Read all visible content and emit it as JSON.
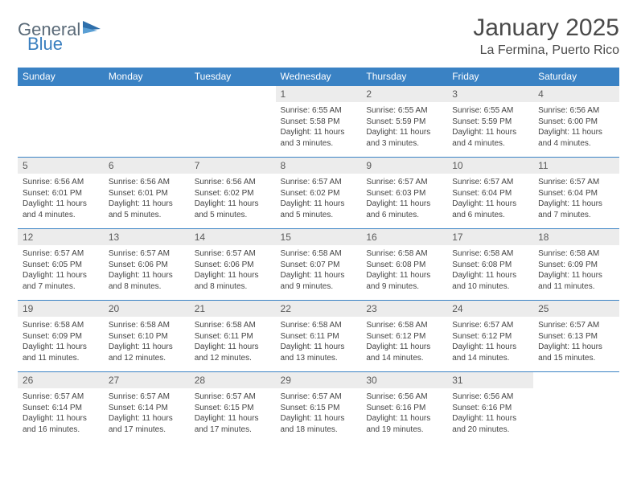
{
  "brand": {
    "name_part1": "General",
    "name_part2": "Blue",
    "text_color": "#5a6a78",
    "accent_color": "#3a7fbf"
  },
  "header": {
    "month_title": "January 2025",
    "location": "La Fermina, Puerto Rico"
  },
  "theme": {
    "header_bg": "#3a82c4",
    "header_text": "#ffffff",
    "daynum_bg": "#ececec",
    "daynum_text": "#5a5a5a",
    "body_text": "#444444",
    "rule_color": "#3a82c4"
  },
  "days_of_week": [
    "Sunday",
    "Monday",
    "Tuesday",
    "Wednesday",
    "Thursday",
    "Friday",
    "Saturday"
  ],
  "weeks": [
    [
      {
        "day": "",
        "lines": [
          "",
          "",
          "",
          ""
        ]
      },
      {
        "day": "",
        "lines": [
          "",
          "",
          "",
          ""
        ]
      },
      {
        "day": "",
        "lines": [
          "",
          "",
          "",
          ""
        ]
      },
      {
        "day": "1",
        "lines": [
          "Sunrise: 6:55 AM",
          "Sunset: 5:58 PM",
          "Daylight: 11 hours",
          "and 3 minutes."
        ]
      },
      {
        "day": "2",
        "lines": [
          "Sunrise: 6:55 AM",
          "Sunset: 5:59 PM",
          "Daylight: 11 hours",
          "and 3 minutes."
        ]
      },
      {
        "day": "3",
        "lines": [
          "Sunrise: 6:55 AM",
          "Sunset: 5:59 PM",
          "Daylight: 11 hours",
          "and 4 minutes."
        ]
      },
      {
        "day": "4",
        "lines": [
          "Sunrise: 6:56 AM",
          "Sunset: 6:00 PM",
          "Daylight: 11 hours",
          "and 4 minutes."
        ]
      }
    ],
    [
      {
        "day": "5",
        "lines": [
          "Sunrise: 6:56 AM",
          "Sunset: 6:01 PM",
          "Daylight: 11 hours",
          "and 4 minutes."
        ]
      },
      {
        "day": "6",
        "lines": [
          "Sunrise: 6:56 AM",
          "Sunset: 6:01 PM",
          "Daylight: 11 hours",
          "and 5 minutes."
        ]
      },
      {
        "day": "7",
        "lines": [
          "Sunrise: 6:56 AM",
          "Sunset: 6:02 PM",
          "Daylight: 11 hours",
          "and 5 minutes."
        ]
      },
      {
        "day": "8",
        "lines": [
          "Sunrise: 6:57 AM",
          "Sunset: 6:02 PM",
          "Daylight: 11 hours",
          "and 5 minutes."
        ]
      },
      {
        "day": "9",
        "lines": [
          "Sunrise: 6:57 AM",
          "Sunset: 6:03 PM",
          "Daylight: 11 hours",
          "and 6 minutes."
        ]
      },
      {
        "day": "10",
        "lines": [
          "Sunrise: 6:57 AM",
          "Sunset: 6:04 PM",
          "Daylight: 11 hours",
          "and 6 minutes."
        ]
      },
      {
        "day": "11",
        "lines": [
          "Sunrise: 6:57 AM",
          "Sunset: 6:04 PM",
          "Daylight: 11 hours",
          "and 7 minutes."
        ]
      }
    ],
    [
      {
        "day": "12",
        "lines": [
          "Sunrise: 6:57 AM",
          "Sunset: 6:05 PM",
          "Daylight: 11 hours",
          "and 7 minutes."
        ]
      },
      {
        "day": "13",
        "lines": [
          "Sunrise: 6:57 AM",
          "Sunset: 6:06 PM",
          "Daylight: 11 hours",
          "and 8 minutes."
        ]
      },
      {
        "day": "14",
        "lines": [
          "Sunrise: 6:57 AM",
          "Sunset: 6:06 PM",
          "Daylight: 11 hours",
          "and 8 minutes."
        ]
      },
      {
        "day": "15",
        "lines": [
          "Sunrise: 6:58 AM",
          "Sunset: 6:07 PM",
          "Daylight: 11 hours",
          "and 9 minutes."
        ]
      },
      {
        "day": "16",
        "lines": [
          "Sunrise: 6:58 AM",
          "Sunset: 6:08 PM",
          "Daylight: 11 hours",
          "and 9 minutes."
        ]
      },
      {
        "day": "17",
        "lines": [
          "Sunrise: 6:58 AM",
          "Sunset: 6:08 PM",
          "Daylight: 11 hours",
          "and 10 minutes."
        ]
      },
      {
        "day": "18",
        "lines": [
          "Sunrise: 6:58 AM",
          "Sunset: 6:09 PM",
          "Daylight: 11 hours",
          "and 11 minutes."
        ]
      }
    ],
    [
      {
        "day": "19",
        "lines": [
          "Sunrise: 6:58 AM",
          "Sunset: 6:09 PM",
          "Daylight: 11 hours",
          "and 11 minutes."
        ]
      },
      {
        "day": "20",
        "lines": [
          "Sunrise: 6:58 AM",
          "Sunset: 6:10 PM",
          "Daylight: 11 hours",
          "and 12 minutes."
        ]
      },
      {
        "day": "21",
        "lines": [
          "Sunrise: 6:58 AM",
          "Sunset: 6:11 PM",
          "Daylight: 11 hours",
          "and 12 minutes."
        ]
      },
      {
        "day": "22",
        "lines": [
          "Sunrise: 6:58 AM",
          "Sunset: 6:11 PM",
          "Daylight: 11 hours",
          "and 13 minutes."
        ]
      },
      {
        "day": "23",
        "lines": [
          "Sunrise: 6:58 AM",
          "Sunset: 6:12 PM",
          "Daylight: 11 hours",
          "and 14 minutes."
        ]
      },
      {
        "day": "24",
        "lines": [
          "Sunrise: 6:57 AM",
          "Sunset: 6:12 PM",
          "Daylight: 11 hours",
          "and 14 minutes."
        ]
      },
      {
        "day": "25",
        "lines": [
          "Sunrise: 6:57 AM",
          "Sunset: 6:13 PM",
          "Daylight: 11 hours",
          "and 15 minutes."
        ]
      }
    ],
    [
      {
        "day": "26",
        "lines": [
          "Sunrise: 6:57 AM",
          "Sunset: 6:14 PM",
          "Daylight: 11 hours",
          "and 16 minutes."
        ]
      },
      {
        "day": "27",
        "lines": [
          "Sunrise: 6:57 AM",
          "Sunset: 6:14 PM",
          "Daylight: 11 hours",
          "and 17 minutes."
        ]
      },
      {
        "day": "28",
        "lines": [
          "Sunrise: 6:57 AM",
          "Sunset: 6:15 PM",
          "Daylight: 11 hours",
          "and 17 minutes."
        ]
      },
      {
        "day": "29",
        "lines": [
          "Sunrise: 6:57 AM",
          "Sunset: 6:15 PM",
          "Daylight: 11 hours",
          "and 18 minutes."
        ]
      },
      {
        "day": "30",
        "lines": [
          "Sunrise: 6:56 AM",
          "Sunset: 6:16 PM",
          "Daylight: 11 hours",
          "and 19 minutes."
        ]
      },
      {
        "day": "31",
        "lines": [
          "Sunrise: 6:56 AM",
          "Sunset: 6:16 PM",
          "Daylight: 11 hours",
          "and 20 minutes."
        ]
      },
      {
        "day": "",
        "lines": [
          "",
          "",
          "",
          ""
        ]
      }
    ]
  ]
}
